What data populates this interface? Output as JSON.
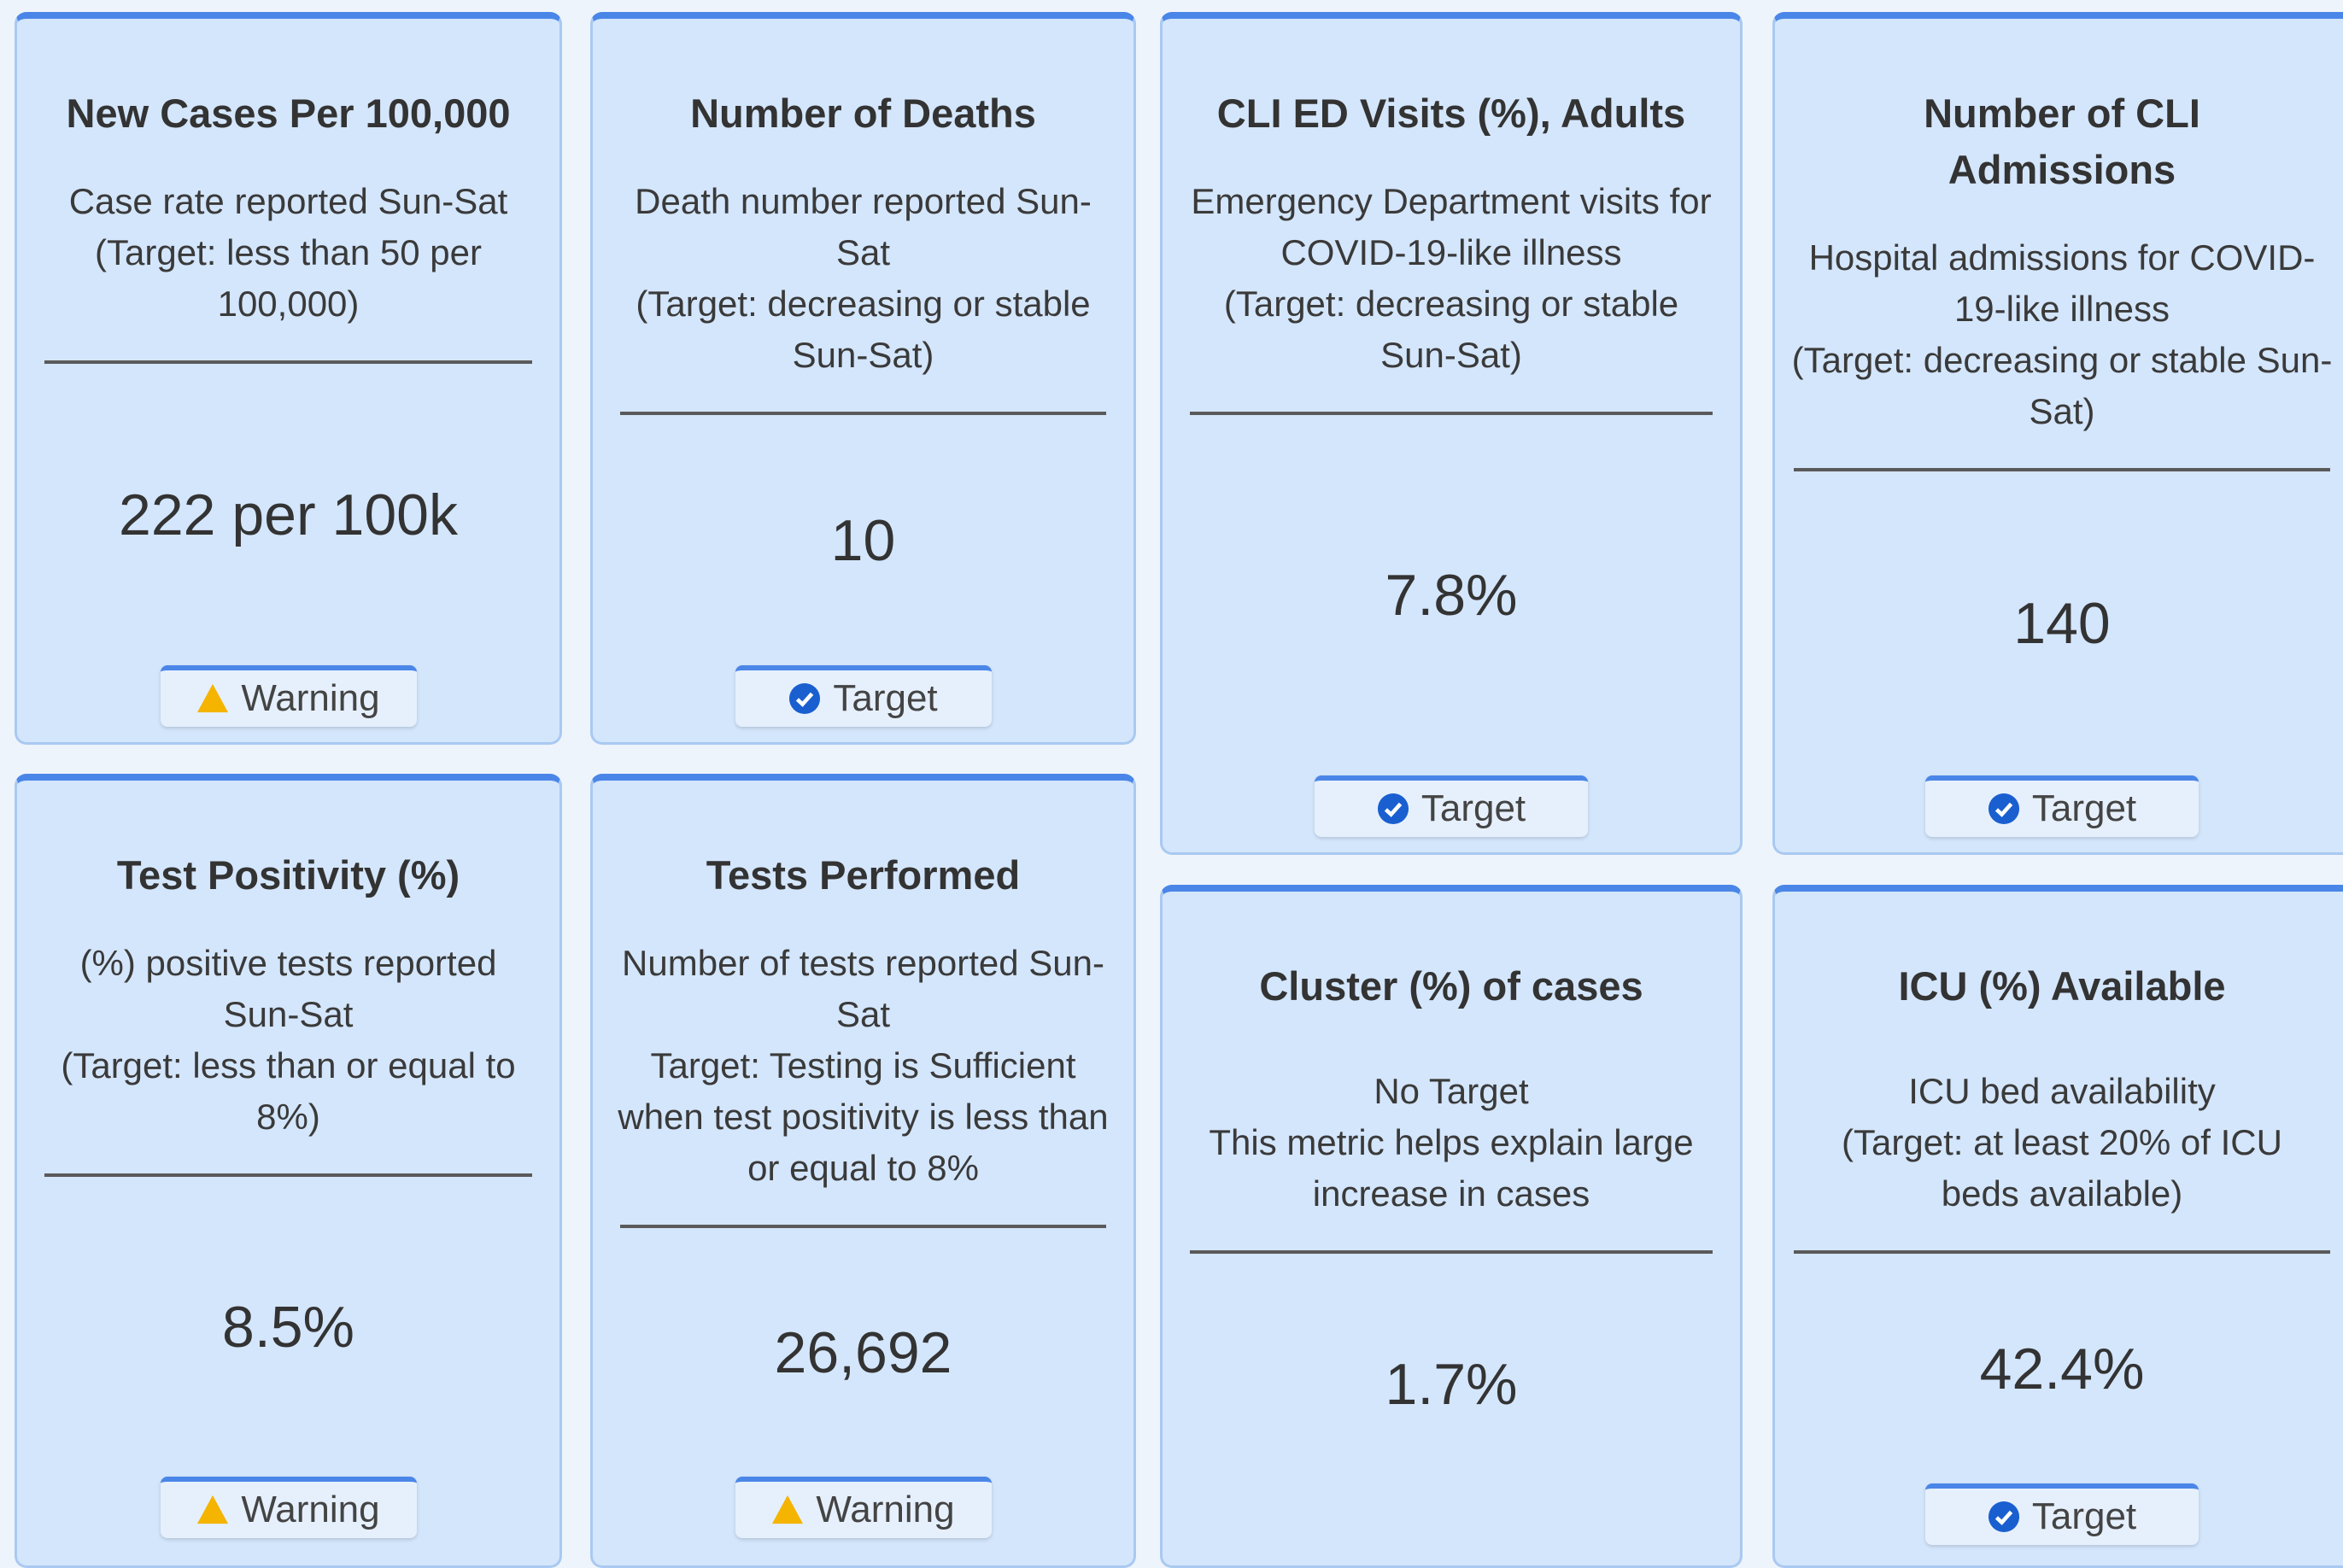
{
  "cards": [
    {
      "title": "New Cases Per 100,000",
      "description": [
        "Case rate reported Sun-Sat",
        "(Target: less than 50 per 100,000)"
      ],
      "value": "222 per 100k",
      "status": "Warning"
    },
    {
      "title": "Number of Deaths",
      "description": [
        "Death number reported Sun-Sat",
        "(Target: decreasing or stable Sun-Sat)"
      ],
      "value": "10",
      "status": "Target"
    },
    {
      "title": "CLI ED Visits (%), Adults",
      "description": [
        "Emergency Department visits for COVID-19-like illness",
        "(Target: decreasing or stable Sun-Sat)"
      ],
      "value": "7.8%",
      "status": "Target"
    },
    {
      "title": "Number of CLI Admissions",
      "description": [
        "Hospital admissions for COVID-19-like illness",
        "(Target: decreasing or stable Sun-Sat)"
      ],
      "value": "140",
      "status": "Target"
    },
    {
      "title": "Test Positivity (%)",
      "description": [
        "(%) positive tests reported Sun-Sat",
        "(Target: less than or equal to 8%)"
      ],
      "value": "8.5%",
      "status": "Warning"
    },
    {
      "title": "Tests Performed",
      "description": [
        "Number of tests reported Sun-Sat",
        "Target: Testing is Sufficient when test positivity is less than or equal to 8%"
      ],
      "value": "26,692",
      "status": "Warning"
    },
    {
      "title": "Cluster (%) of cases",
      "description": [
        "No Target",
        "This metric helps explain large increase in cases"
      ],
      "value": "1.7%"
    },
    {
      "title": "ICU (%) Available",
      "description": [
        "ICU bed availability",
        "(Target: at least 20% of ICU beds available)"
      ],
      "value": "42.4%",
      "status": "Target"
    }
  ]
}
